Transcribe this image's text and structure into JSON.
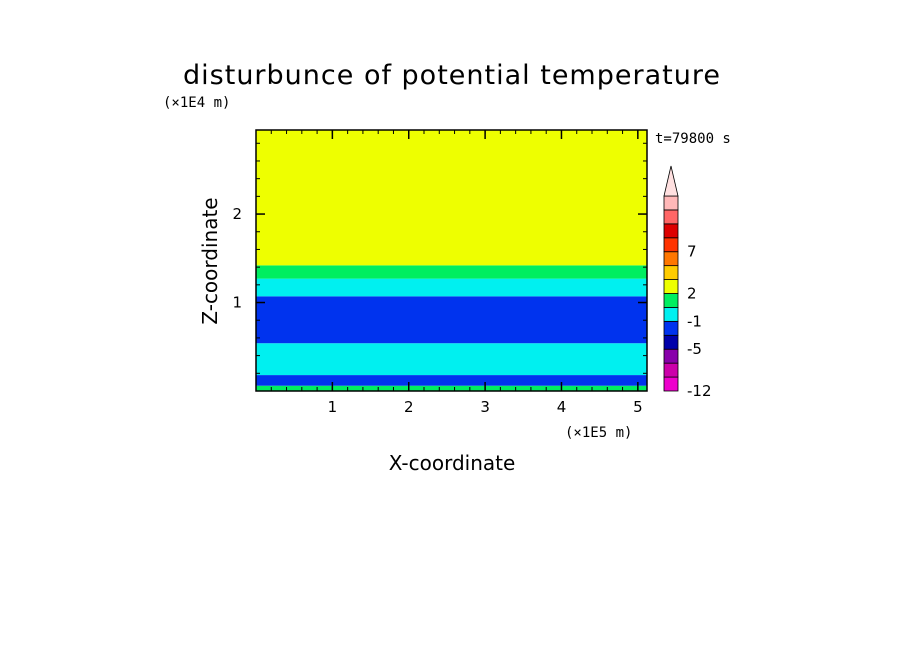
{
  "chart_data": {
    "type": "heatmap",
    "title": "disturbunce of potential temperature",
    "xlabel": "X-coordinate",
    "ylabel": "Z-coordinate",
    "x_unit": "(×1E5 m)",
    "y_unit": "(×1E4 m)",
    "time_label": "t=79800 s",
    "xlim": [
      0,
      5.12
    ],
    "ylim": [
      0,
      2.95
    ],
    "x_ticks": [
      1,
      2,
      3,
      4,
      5
    ],
    "y_ticks": [
      1,
      2
    ],
    "bands": [
      {
        "z0": 0.0,
        "z1": 0.06,
        "color": "#00ee60"
      },
      {
        "z0": 0.06,
        "z1": 0.18,
        "color": "#0033ee"
      },
      {
        "z0": 0.18,
        "z1": 0.54,
        "color": "#00f0f0"
      },
      {
        "z0": 0.54,
        "z1": 1.07,
        "color": "#0033ee"
      },
      {
        "z0": 1.07,
        "z1": 1.27,
        "color": "#00f0f0"
      },
      {
        "z0": 1.27,
        "z1": 1.42,
        "color": "#00ee60"
      },
      {
        "z0": 1.42,
        "z1": 2.95,
        "color": "#eeff00"
      }
    ],
    "colorbar": {
      "colors": [
        "#ee00cc",
        "#cc00aa",
        "#8800aa",
        "#0000aa",
        "#0033ee",
        "#00f0f0",
        "#00ee60",
        "#eeff00",
        "#ffcc00",
        "#ff7700",
        "#ff3300",
        "#dd0000",
        "#ff6666",
        "#ffb8b8"
      ],
      "labels": [
        {
          "index": 0,
          "text": "-12"
        },
        {
          "index": 3,
          "text": "-5"
        },
        {
          "index": 5,
          "text": "-1"
        },
        {
          "index": 7,
          "text": "2"
        },
        {
          "index": 10,
          "text": "7"
        }
      ],
      "extend_top": true
    }
  }
}
